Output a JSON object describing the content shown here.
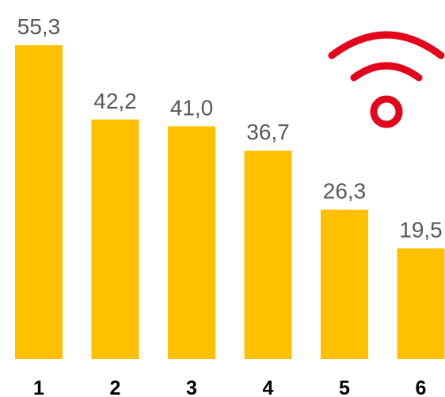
{
  "chart_data": {
    "type": "bar",
    "categories": [
      "1",
      "2",
      "3",
      "4",
      "5",
      "6"
    ],
    "values": [
      55.3,
      42.2,
      41.0,
      36.7,
      26.3,
      19.5
    ],
    "value_labels": [
      "55,3",
      "42,2",
      "41,0",
      "36,7",
      "26,3",
      "19,5"
    ],
    "title": "",
    "xlabel": "",
    "ylabel": "",
    "ylim": [
      0,
      55.3
    ],
    "grid": false,
    "legend": "none"
  },
  "colors": {
    "bar": "#FFC000",
    "icon": "#E3061B",
    "value_text": "#595959",
    "category_text": "#000000"
  },
  "icon": {
    "name": "wifi-signal-icon"
  }
}
